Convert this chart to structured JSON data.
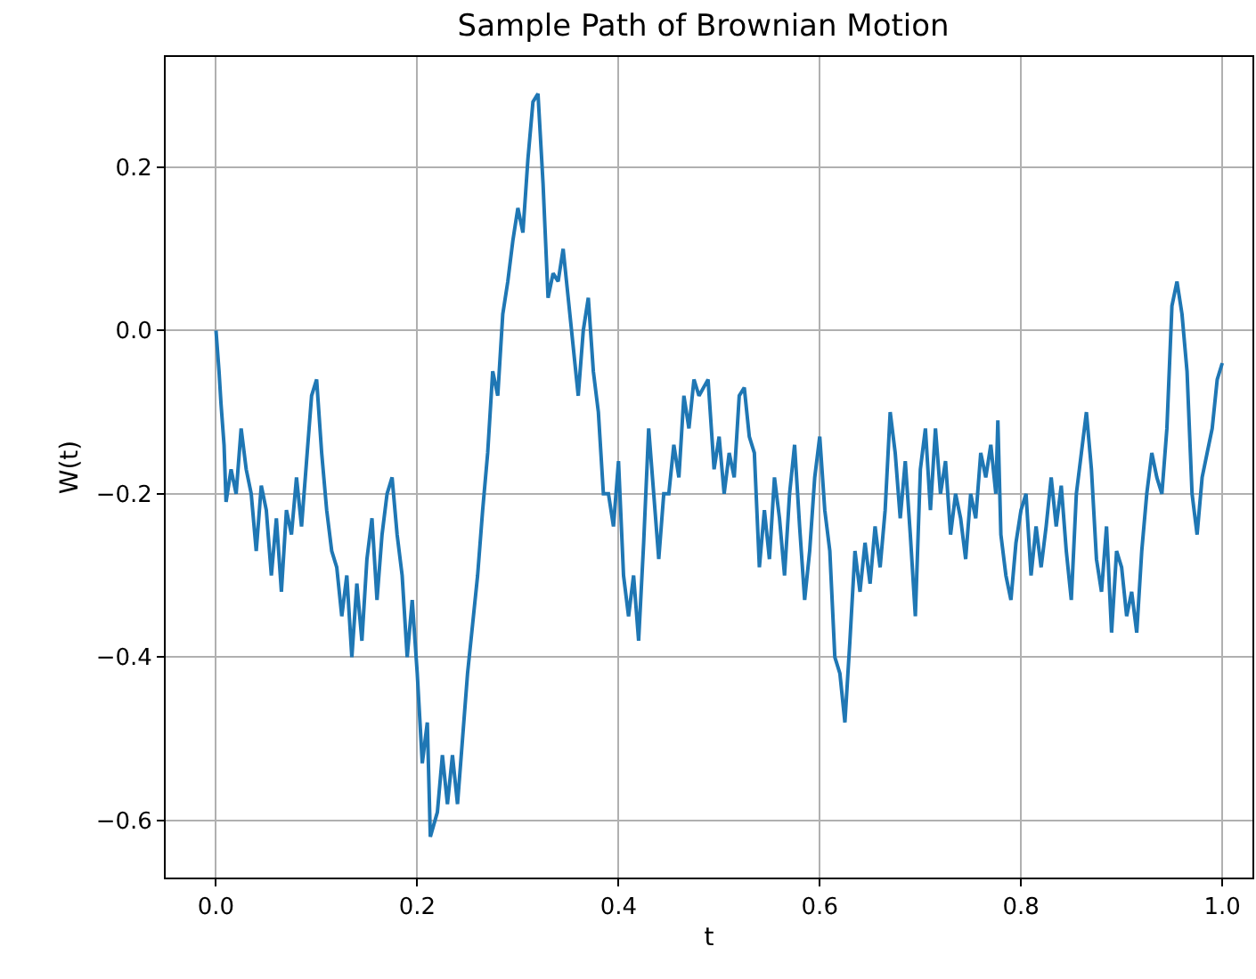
{
  "chart_data": {
    "type": "line",
    "title": "Sample Path of Brownian Motion",
    "xlabel": "t",
    "ylabel": "W(t)",
    "x": [
      0,
      0.003,
      0.005,
      0.008,
      0.01,
      0.015,
      0.02,
      0.025,
      0.03,
      0.035,
      0.04,
      0.045,
      0.05,
      0.055,
      0.06,
      0.065,
      0.07,
      0.075,
      0.08,
      0.085,
      0.09,
      0.095,
      0.1,
      0.105,
      0.11,
      0.115,
      0.12,
      0.125,
      0.13,
      0.135,
      0.14,
      0.145,
      0.15,
      0.155,
      0.16,
      0.165,
      0.17,
      0.175,
      0.18,
      0.185,
      0.19,
      0.195,
      0.2,
      0.205,
      0.21,
      0.213,
      0.22,
      0.225,
      0.23,
      0.235,
      0.24,
      0.245,
      0.25,
      0.255,
      0.26,
      0.265,
      0.27,
      0.275,
      0.28,
      0.285,
      0.29,
      0.295,
      0.3,
      0.305,
      0.31,
      0.315,
      0.32,
      0.325,
      0.33,
      0.335,
      0.34,
      0.345,
      0.35,
      0.355,
      0.36,
      0.365,
      0.37,
      0.375,
      0.38,
      0.385,
      0.39,
      0.395,
      0.4,
      0.405,
      0.41,
      0.415,
      0.42,
      0.425,
      0.43,
      0.435,
      0.44,
      0.445,
      0.45,
      0.455,
      0.46,
      0.465,
      0.47,
      0.475,
      0.48,
      0.489,
      0.495,
      0.5,
      0.505,
      0.51,
      0.515,
      0.52,
      0.525,
      0.53,
      0.535,
      0.54,
      0.545,
      0.55,
      0.555,
      0.56,
      0.565,
      0.57,
      0.575,
      0.58,
      0.585,
      0.59,
      0.595,
      0.6,
      0.605,
      0.61,
      0.615,
      0.62,
      0.625,
      0.63,
      0.635,
      0.64,
      0.645,
      0.65,
      0.655,
      0.66,
      0.665,
      0.67,
      0.675,
      0.68,
      0.685,
      0.69,
      0.695,
      0.7,
      0.705,
      0.71,
      0.715,
      0.72,
      0.725,
      0.73,
      0.735,
      0.74,
      0.745,
      0.75,
      0.755,
      0.76,
      0.765,
      0.77,
      0.775,
      0.777,
      0.78,
      0.785,
      0.79,
      0.795,
      0.8,
      0.805,
      0.81,
      0.815,
      0.82,
      0.825,
      0.83,
      0.835,
      0.84,
      0.845,
      0.85,
      0.855,
      0.86,
      0.865,
      0.87,
      0.875,
      0.88,
      0.885,
      0.89,
      0.895,
      0.9,
      0.905,
      0.91,
      0.915,
      0.92,
      0.925,
      0.93,
      0.935,
      0.94,
      0.945,
      0.95,
      0.955,
      0.96,
      0.965,
      0.97,
      0.975,
      0.98,
      0.985,
      0.99,
      0.995,
      1.0
    ],
    "series": [
      {
        "color": "#1f77b4",
        "values": [
          0,
          -0.05,
          -0.09,
          -0.14,
          -0.21,
          -0.17,
          -0.2,
          -0.12,
          -0.17,
          -0.2,
          -0.27,
          -0.19,
          -0.22,
          -0.3,
          -0.23,
          -0.32,
          -0.22,
          -0.25,
          -0.18,
          -0.24,
          -0.16,
          -0.08,
          -0.06,
          -0.15,
          -0.22,
          -0.27,
          -0.29,
          -0.35,
          -0.3,
          -0.4,
          -0.31,
          -0.38,
          -0.28,
          -0.23,
          -0.33,
          -0.25,
          -0.2,
          -0.18,
          -0.25,
          -0.3,
          -0.4,
          -0.33,
          -0.42,
          -0.53,
          -0.48,
          -0.62,
          -0.59,
          -0.52,
          -0.58,
          -0.52,
          -0.58,
          -0.5,
          -0.42,
          -0.36,
          -0.3,
          -0.22,
          -0.15,
          -0.05,
          -0.08,
          0.02,
          0.06,
          0.11,
          0.15,
          0.12,
          0.21,
          0.28,
          0.29,
          0.18,
          0.04,
          0.07,
          0.06,
          0.1,
          0.04,
          -0.02,
          -0.08,
          0.0,
          0.04,
          -0.05,
          -0.1,
          -0.2,
          -0.2,
          -0.24,
          -0.16,
          -0.3,
          -0.35,
          -0.3,
          -0.38,
          -0.26,
          -0.12,
          -0.2,
          -0.28,
          -0.2,
          -0.2,
          -0.14,
          -0.18,
          -0.08,
          -0.12,
          -0.06,
          -0.08,
          -0.06,
          -0.17,
          -0.13,
          -0.2,
          -0.15,
          -0.18,
          -0.08,
          -0.07,
          -0.13,
          -0.15,
          -0.29,
          -0.22,
          -0.28,
          -0.18,
          -0.23,
          -0.3,
          -0.2,
          -0.14,
          -0.24,
          -0.33,
          -0.27,
          -0.18,
          -0.13,
          -0.22,
          -0.27,
          -0.4,
          -0.42,
          -0.48,
          -0.38,
          -0.27,
          -0.32,
          -0.26,
          -0.31,
          -0.24,
          -0.29,
          -0.22,
          -0.1,
          -0.15,
          -0.23,
          -0.16,
          -0.25,
          -0.35,
          -0.17,
          -0.12,
          -0.22,
          -0.12,
          -0.2,
          -0.16,
          -0.25,
          -0.2,
          -0.23,
          -0.28,
          -0.2,
          -0.23,
          -0.15,
          -0.18,
          -0.14,
          -0.2,
          -0.11,
          -0.25,
          -0.3,
          -0.33,
          -0.26,
          -0.22,
          -0.2,
          -0.3,
          -0.24,
          -0.29,
          -0.24,
          -0.18,
          -0.24,
          -0.19,
          -0.27,
          -0.33,
          -0.2,
          -0.15,
          -0.1,
          -0.17,
          -0.28,
          -0.32,
          -0.24,
          -0.37,
          -0.27,
          -0.29,
          -0.35,
          -0.32,
          -0.37,
          -0.27,
          -0.2,
          -0.15,
          -0.18,
          -0.2,
          -0.12,
          0.03,
          0.06,
          0.02,
          -0.05,
          -0.2,
          -0.25,
          -0.18,
          -0.15,
          -0.12,
          -0.06,
          -0.04
        ]
      }
    ],
    "xlim": [
      -0.05,
      1.03
    ],
    "ylim": [
      -0.67,
      0.335
    ],
    "xticks": [
      {
        "value": 0,
        "label": "0.0"
      },
      0.2,
      0.4,
      0.6,
      0.8,
      {
        "value": 1,
        "label": "1.0"
      }
    ],
    "yticks": [
      {
        "value": -0.6,
        "label": "−0.6"
      },
      {
        "value": -0.4,
        "label": "−0.4"
      },
      {
        "value": -0.2,
        "label": "−0.2"
      },
      {
        "value": 0,
        "label": "0.0"
      },
      0.2
    ],
    "grid": true,
    "marker": "none",
    "line_style": "solid"
  }
}
